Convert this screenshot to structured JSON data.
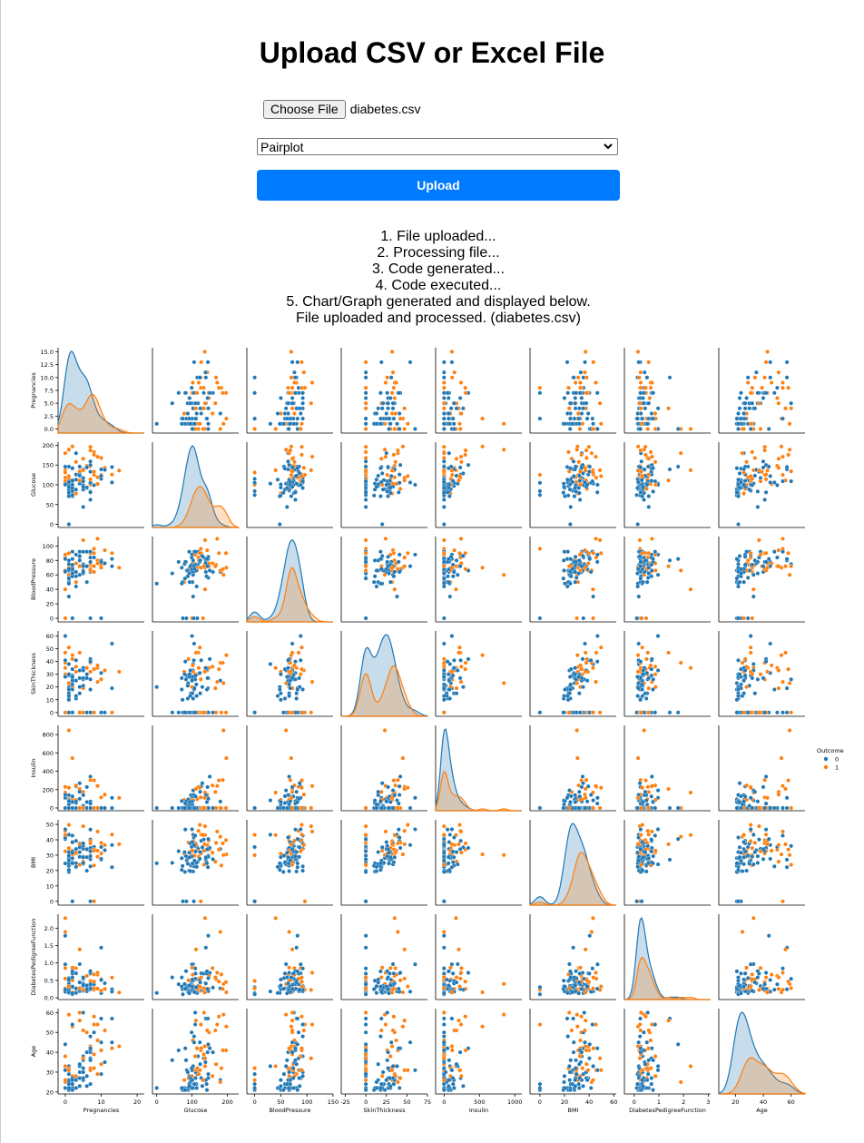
{
  "page": {
    "title": "Upload CSV or Excel File",
    "file_button": "Choose File",
    "file_name": "diabetes.csv",
    "chart_type_selected": "Pairplot",
    "upload_button": "Upload",
    "status_lines": [
      "1. File uploaded...",
      "2. Processing file...",
      "3. Code generated...",
      "4. Code executed...",
      "5. Chart/Graph generated and displayed below.",
      "File uploaded and processed. (diabetes.csv)"
    ]
  },
  "colors": {
    "outcome_0": "#1f77b4",
    "outcome_1": "#ff7f0e",
    "upload_button": "#007bff"
  },
  "chart_data": {
    "type": "scatter",
    "title": "",
    "subtitle": "pairplot (scatter off-diagonal, KDE on diagonal)",
    "hue": "Outcome",
    "legend": {
      "title": "Outcome",
      "entries": [
        "0",
        "1"
      ],
      "placement": "right"
    },
    "variables": [
      "Pregnancies",
      "Glucose",
      "BloodPressure",
      "SkinThickness",
      "Insulin",
      "BMI",
      "DiabetesPedigreeFunction",
      "Age"
    ],
    "axes": {
      "Pregnancies": {
        "range": [
          -2,
          22
        ],
        "ticks": [
          0,
          10,
          20
        ],
        "yticks": [
          0.0,
          2.5,
          5.0,
          7.5,
          10.0,
          12.5,
          15.0
        ],
        "ylim": [
          -0.8,
          15.8
        ]
      },
      "Glucose": {
        "range": [
          -12,
          232
        ],
        "ticks": [
          0,
          100,
          200
        ],
        "yticks": [
          0,
          50,
          100,
          150,
          200
        ],
        "ylim": [
          -8,
          208
        ]
      },
      "BloodPressure": {
        "range": [
          -15,
          150
        ],
        "ticks": [
          0,
          50,
          100,
          150
        ],
        "yticks": [
          0,
          20,
          40,
          60,
          80,
          100
        ],
        "ylim": [
          -5,
          113
        ]
      },
      "SkinThickness": {
        "range": [
          -30,
          75
        ],
        "ticks": [
          -25,
          0,
          25,
          50,
          75
        ],
        "yticks": [
          0,
          10,
          20,
          30,
          40,
          50,
          60
        ],
        "ylim": [
          -3,
          64
        ]
      },
      "Insulin": {
        "range": [
          -120,
          1100
        ],
        "ticks": [
          0,
          500,
          1000
        ],
        "yticks": [
          0,
          200,
          400,
          600,
          800
        ],
        "ylim": [
          -30,
          900
        ]
      },
      "BMI": {
        "range": [
          -8,
          62
        ],
        "ticks": [
          0,
          20,
          40,
          60
        ],
        "yticks": [
          0,
          10,
          20,
          30,
          40,
          50
        ],
        "ylim": [
          -2.5,
          53
        ]
      },
      "DiabetesPedigreeFunction": {
        "range": [
          -0.4,
          3.1
        ],
        "ticks": [
          0,
          1,
          2,
          3
        ],
        "yticks": [
          0.0,
          0.5,
          1.0,
          1.5,
          2.0
        ],
        "ylim": [
          -0.05,
          2.4
        ]
      },
      "Age": {
        "range": [
          8,
          70
        ],
        "ticks": [
          20,
          40,
          60
        ],
        "yticks": [
          20,
          30,
          40,
          50,
          60
        ],
        "ylim": [
          19,
          62
        ]
      }
    },
    "points": [
      [
        6,
        148,
        72,
        35,
        0,
        33.6,
        0.627,
        50,
        1
      ],
      [
        1,
        85,
        66,
        29,
        0,
        26.6,
        0.351,
        31,
        0
      ],
      [
        8,
        183,
        64,
        0,
        0,
        23.3,
        0.672,
        32,
        1
      ],
      [
        1,
        89,
        66,
        23,
        94,
        28.1,
        0.167,
        21,
        0
      ],
      [
        0,
        137,
        40,
        35,
        168,
        43.1,
        2.288,
        33,
        1
      ],
      [
        5,
        116,
        74,
        0,
        0,
        25.6,
        0.201,
        30,
        0
      ],
      [
        3,
        78,
        50,
        32,
        88,
        31.0,
        0.248,
        26,
        1
      ],
      [
        10,
        115,
        0,
        0,
        0,
        35.3,
        0.134,
        29,
        0
      ],
      [
        2,
        197,
        70,
        45,
        543,
        30.5,
        0.158,
        53,
        1
      ],
      [
        8,
        125,
        96,
        0,
        0,
        0.0,
        0.232,
        54,
        1
      ],
      [
        4,
        110,
        92,
        0,
        0,
        37.6,
        0.191,
        30,
        0
      ],
      [
        10,
        168,
        74,
        0,
        0,
        38.0,
        0.537,
        34,
        1
      ],
      [
        10,
        139,
        80,
        0,
        0,
        27.1,
        1.441,
        57,
        0
      ],
      [
        1,
        189,
        60,
        23,
        846,
        30.1,
        0.398,
        59,
        1
      ],
      [
        5,
        166,
        72,
        19,
        175,
        25.8,
        0.587,
        51,
        1
      ],
      [
        7,
        100,
        0,
        0,
        0,
        30.0,
        0.484,
        32,
        1
      ],
      [
        0,
        118,
        84,
        47,
        230,
        45.8,
        0.551,
        31,
        1
      ],
      [
        7,
        107,
        74,
        0,
        0,
        29.6,
        0.254,
        31,
        1
      ],
      [
        1,
        103,
        30,
        38,
        83,
        43.3,
        0.183,
        33,
        0
      ],
      [
        1,
        115,
        70,
        30,
        96,
        34.6,
        0.529,
        32,
        1
      ],
      [
        3,
        126,
        88,
        41,
        235,
        39.3,
        0.704,
        27,
        0
      ],
      [
        8,
        99,
        84,
        0,
        0,
        35.4,
        0.388,
        50,
        0
      ],
      [
        7,
        196,
        90,
        0,
        0,
        39.8,
        0.451,
        41,
        1
      ],
      [
        9,
        119,
        80,
        35,
        0,
        29.0,
        0.263,
        29,
        1
      ],
      [
        11,
        143,
        94,
        33,
        146,
        36.6,
        0.254,
        51,
        1
      ],
      [
        10,
        125,
        70,
        26,
        115,
        31.1,
        0.205,
        41,
        1
      ],
      [
        7,
        147,
        76,
        0,
        0,
        39.4,
        0.257,
        43,
        1
      ],
      [
        1,
        97,
        66,
        15,
        140,
        23.2,
        0.487,
        22,
        0
      ],
      [
        13,
        145,
        82,
        19,
        110,
        22.2,
        0.245,
        57,
        0
      ],
      [
        5,
        117,
        92,
        0,
        0,
        34.1,
        0.337,
        38,
        0
      ],
      [
        5,
        109,
        75,
        26,
        0,
        36.0,
        0.546,
        60,
        0
      ],
      [
        3,
        158,
        76,
        36,
        245,
        31.6,
        0.851,
        28,
        1
      ],
      [
        3,
        88,
        58,
        11,
        54,
        24.8,
        0.267,
        22,
        0
      ],
      [
        6,
        92,
        92,
        0,
        0,
        19.9,
        0.188,
        28,
        0
      ],
      [
        10,
        122,
        78,
        31,
        0,
        27.6,
        0.512,
        45,
        0
      ],
      [
        4,
        103,
        60,
        33,
        192,
        24.0,
        0.966,
        33,
        0
      ],
      [
        11,
        138,
        76,
        0,
        0,
        33.2,
        0.42,
        35,
        0
      ],
      [
        9,
        102,
        76,
        37,
        0,
        32.9,
        0.665,
        46,
        1
      ],
      [
        2,
        90,
        68,
        42,
        0,
        38.2,
        0.503,
        27,
        1
      ],
      [
        4,
        111,
        72,
        47,
        207,
        37.1,
        1.39,
        56,
        1
      ],
      [
        3,
        180,
        64,
        25,
        70,
        34.0,
        0.271,
        26,
        0
      ],
      [
        7,
        133,
        84,
        0,
        0,
        40.2,
        0.696,
        37,
        0
      ],
      [
        7,
        106,
        92,
        18,
        0,
        22.7,
        0.235,
        48,
        0
      ],
      [
        9,
        171,
        110,
        24,
        240,
        45.4,
        0.721,
        54,
        1
      ],
      [
        7,
        159,
        64,
        0,
        0,
        27.4,
        0.294,
        40,
        0
      ],
      [
        0,
        180,
        66,
        39,
        0,
        42.0,
        1.893,
        25,
        1
      ],
      [
        1,
        146,
        56,
        0,
        0,
        29.7,
        0.564,
        29,
        0
      ],
      [
        2,
        71,
        70,
        27,
        0,
        28.0,
        0.586,
        22,
        0
      ],
      [
        7,
        103,
        66,
        32,
        0,
        39.1,
        0.344,
        31,
        1
      ],
      [
        7,
        105,
        0,
        0,
        0,
        0.0,
        0.305,
        24,
        0
      ],
      [
        1,
        103,
        80,
        11,
        82,
        19.4,
        0.491,
        22,
        0
      ],
      [
        1,
        101,
        50,
        15,
        36,
        24.2,
        0.526,
        26,
        0
      ],
      [
        5,
        88,
        66,
        21,
        23,
        24.4,
        0.342,
        30,
        0
      ],
      [
        8,
        176,
        90,
        34,
        300,
        33.7,
        0.467,
        58,
        1
      ],
      [
        7,
        150,
        66,
        42,
        342,
        34.7,
        0.718,
        42,
        0
      ],
      [
        1,
        73,
        50,
        10,
        0,
        23.0,
        0.248,
        21,
        0
      ],
      [
        7,
        187,
        68,
        39,
        304,
        37.7,
        0.254,
        41,
        1
      ],
      [
        0,
        100,
        88,
        60,
        110,
        46.8,
        0.962,
        31,
        0
      ],
      [
        0,
        146,
        82,
        0,
        0,
        40.5,
        1.781,
        44,
        0
      ],
      [
        0,
        105,
        64,
        41,
        142,
        41.5,
        0.173,
        22,
        0
      ],
      [
        2,
        84,
        0,
        0,
        0,
        0.0,
        0.304,
        21,
        0
      ],
      [
        8,
        133,
        72,
        0,
        0,
        32.9,
        0.27,
        39,
        1
      ],
      [
        5,
        44,
        62,
        0,
        0,
        25.0,
        0.587,
        36,
        0
      ],
      [
        2,
        141,
        58,
        34,
        128,
        25.4,
        0.699,
        24,
        0
      ],
      [
        7,
        114,
        66,
        0,
        0,
        32.8,
        0.258,
        42,
        1
      ],
      [
        5,
        99,
        74,
        27,
        0,
        29.0,
        0.203,
        32,
        0
      ],
      [
        0,
        109,
        88,
        30,
        0,
        32.5,
        0.855,
        38,
        1
      ],
      [
        2,
        109,
        92,
        0,
        0,
        42.7,
        0.845,
        54,
        0
      ],
      [
        1,
        95,
        66,
        13,
        38,
        19.6,
        0.334,
        25,
        0
      ],
      [
        4,
        146,
        85,
        27,
        100,
        28.9,
        0.189,
        27,
        0
      ],
      [
        2,
        100,
        66,
        20,
        90,
        32.9,
        0.867,
        28,
        1
      ],
      [
        5,
        139,
        64,
        35,
        140,
        28.6,
        0.411,
        26,
        0
      ],
      [
        13,
        126,
        90,
        0,
        0,
        43.4,
        0.583,
        42,
        1
      ],
      [
        4,
        129,
        86,
        20,
        270,
        35.1,
        0.231,
        23,
        0
      ],
      [
        1,
        79,
        75,
        30,
        0,
        32.0,
        0.396,
        22,
        0
      ],
      [
        1,
        0,
        48,
        20,
        0,
        24.7,
        0.14,
        22,
        0
      ],
      [
        7,
        62,
        78,
        0,
        0,
        32.6,
        0.391,
        41,
        0
      ],
      [
        5,
        95,
        72,
        33,
        0,
        37.7,
        0.37,
        27,
        0
      ],
      [
        0,
        131,
        0,
        0,
        0,
        43.2,
        0.27,
        26,
        1
      ],
      [
        2,
        112,
        66,
        22,
        0,
        25.0,
        0.307,
        24,
        0
      ],
      [
        3,
        113,
        44,
        13,
        0,
        22.4,
        0.14,
        22,
        0
      ],
      [
        2,
        74,
        0,
        0,
        0,
        0.0,
        0.102,
        22,
        0
      ],
      [
        7,
        83,
        78,
        26,
        71,
        29.3,
        0.767,
        36,
        0
      ],
      [
        0,
        101,
        65,
        28,
        0,
        24.6,
        0.237,
        22,
        0
      ],
      [
        5,
        137,
        108,
        0,
        0,
        48.8,
        0.227,
        37,
        1
      ],
      [
        2,
        110,
        74,
        29,
        125,
        32.4,
        0.698,
        27,
        0
      ],
      [
        13,
        106,
        72,
        54,
        0,
        36.6,
        0.178,
        45,
        0
      ],
      [
        2,
        100,
        68,
        25,
        71,
        38.5,
        0.324,
        26,
        0
      ],
      [
        15,
        136,
        70,
        32,
        110,
        37.1,
        0.153,
        43,
        1
      ],
      [
        1,
        107,
        68,
        19,
        0,
        26.5,
        0.165,
        24,
        0
      ],
      [
        1,
        80,
        55,
        0,
        0,
        19.1,
        0.258,
        21,
        0
      ],
      [
        4,
        123,
        80,
        15,
        176,
        32.0,
        0.443,
        34,
        0
      ],
      [
        7,
        81,
        78,
        40,
        48,
        46.7,
        0.261,
        42,
        0
      ],
      [
        4,
        134,
        72,
        0,
        0,
        23.8,
        0.277,
        60,
        1
      ],
      [
        2,
        142,
        82,
        18,
        64,
        24.7,
        0.761,
        21,
        0
      ],
      [
        6,
        144,
        72,
        27,
        228,
        33.9,
        0.255,
        40,
        0
      ],
      [
        2,
        92,
        62,
        28,
        0,
        31.6,
        0.13,
        24,
        0
      ],
      [
        1,
        71,
        48,
        18,
        76,
        20.4,
        0.323,
        22,
        0
      ],
      [
        6,
        93,
        50,
        30,
        64,
        28.7,
        0.356,
        23,
        0
      ],
      [
        1,
        122,
        90,
        51,
        220,
        49.7,
        0.325,
        31,
        1
      ]
    ]
  }
}
